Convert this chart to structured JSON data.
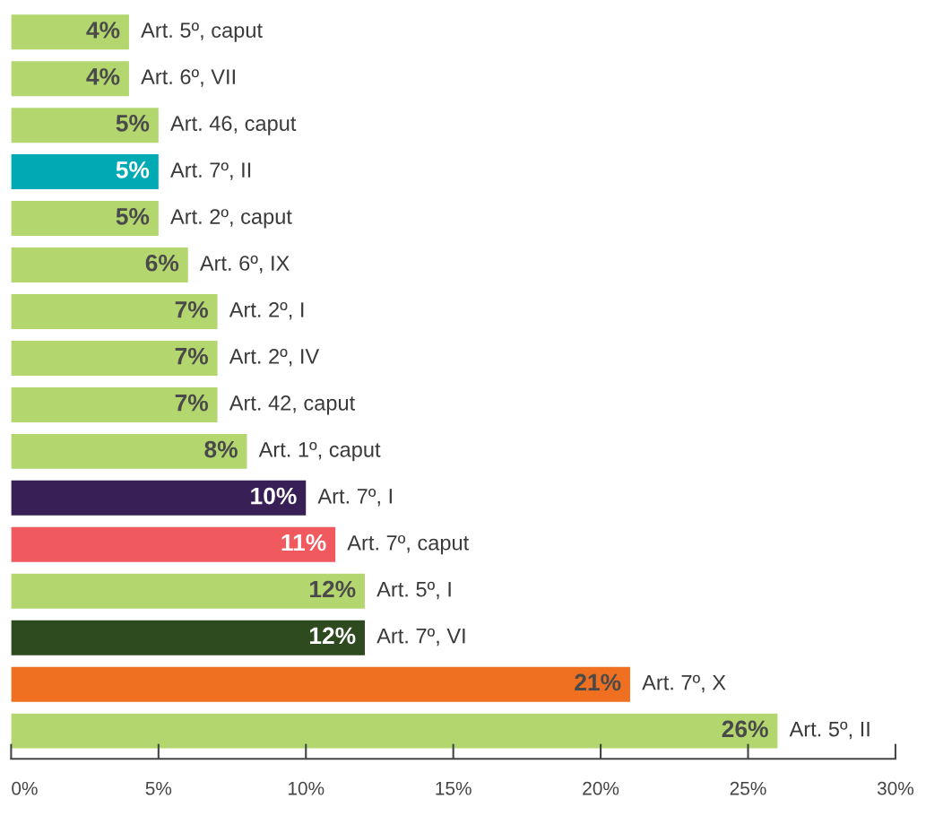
{
  "chart_data": {
    "type": "bar",
    "orientation": "horizontal",
    "tick_labels": "x",
    "grid": false,
    "legend": false,
    "categories": [
      "Art. 5º, caput",
      "Art. 6º, VII",
      "Art. 46, caput",
      "Art. 7º, II",
      "Art. 2º, caput",
      "Art. 6º, IX",
      "Art. 2º, I",
      "Art. 2º, IV",
      "Art. 42, caput",
      "Art. 1º, caput",
      "Art. 7º, I",
      "Art. 7º, caput",
      "Art. 5º, I",
      "Art. 7º, VI",
      "Art. 7º, X",
      "Art. 5º, II"
    ],
    "values": [
      4,
      4,
      5,
      5,
      5,
      6,
      7,
      7,
      7,
      8,
      10,
      11,
      12,
      12,
      21,
      26
    ],
    "value_labels": [
      "4%",
      "4%",
      "5%",
      "5%",
      "5%",
      "6%",
      "7%",
      "7%",
      "7%",
      "8%",
      "10%",
      "11%",
      "12%",
      "12%",
      "21%",
      "26%"
    ],
    "colors": [
      "#b3d66f",
      "#b3d66f",
      "#b3d66f",
      "#00aab5",
      "#b3d66f",
      "#b3d66f",
      "#b3d66f",
      "#b3d66f",
      "#b3d66f",
      "#b3d66f",
      "#381f55",
      "#f05a5e",
      "#b3d66f",
      "#2e4a1f",
      "#f07022",
      "#b3d66f"
    ],
    "xlim": [
      0,
      30
    ],
    "xticks": [
      {
        "value": 0,
        "label": "0%"
      },
      {
        "value": 5,
        "label": "5%"
      },
      {
        "value": 10,
        "label": "10%"
      },
      {
        "value": 15,
        "label": "15%"
      },
      {
        "value": 20,
        "label": "20%"
      },
      {
        "value": 25,
        "label": "25%"
      },
      {
        "value": 30,
        "label": "30%"
      }
    ]
  }
}
